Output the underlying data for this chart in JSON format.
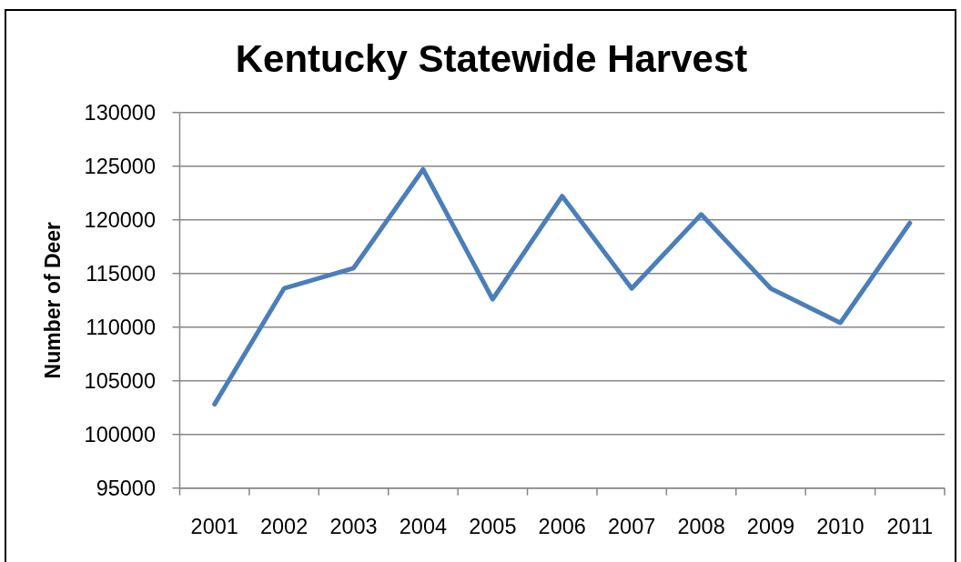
{
  "chart_data": {
    "type": "line",
    "title": "Kentucky Statewide Harvest",
    "ylabel": "Number of Deer",
    "categories": [
      "2001",
      "2002",
      "2003",
      "2004",
      "2005",
      "2006",
      "2007",
      "2008",
      "2009",
      "2010",
      "2011"
    ],
    "series": [
      {
        "color": "#4a7ebb",
        "values": [
          102800,
          113600,
          115500,
          124700,
          112600,
          122200,
          113600,
          120500,
          113600,
          110400,
          119700
        ]
      }
    ],
    "ylim": [
      95000,
      130000
    ],
    "yticks": [
      95000,
      100000,
      105000,
      110000,
      115000,
      120000,
      125000,
      130000
    ],
    "grid": "y"
  }
}
